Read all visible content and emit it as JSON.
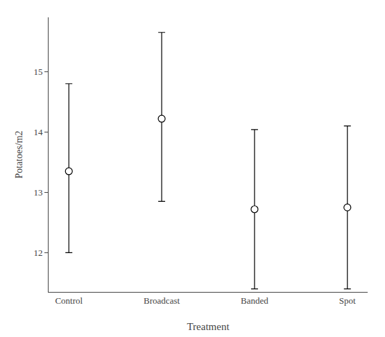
{
  "chart_data": {
    "type": "scatter",
    "xlabel": "Treatment",
    "ylabel": "Potatoes/m2",
    "categories": [
      "Control",
      "Broadcast",
      "Banded",
      "Spot"
    ],
    "values": [
      13.35,
      14.22,
      12.72,
      12.75
    ],
    "upper_errors": [
      1.45,
      1.43,
      1.32,
      1.35
    ],
    "lower_errors": [
      1.35,
      1.37,
      1.32,
      1.35
    ],
    "color": "black",
    "marker": "hollow",
    "ylim": [
      11.35,
      15.9
    ],
    "yticks": [
      12,
      13,
      14,
      15
    ],
    "grid": false
  }
}
